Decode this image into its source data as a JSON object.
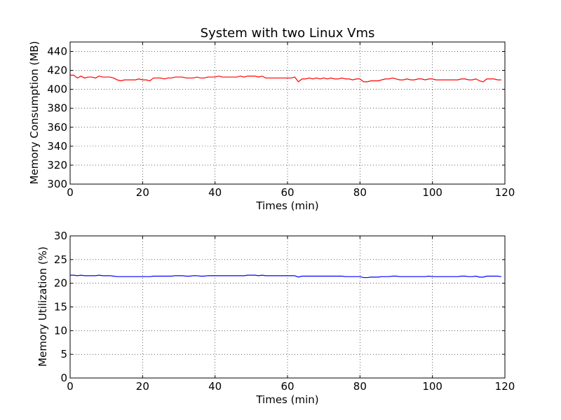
{
  "colors": {
    "series_top": "#ff0000",
    "series_bottom": "#0000ff",
    "axes": "#000000",
    "grid": "#000000"
  },
  "chart_data": [
    {
      "type": "line",
      "title": "System with two Linux Vms",
      "xlabel": "Times (min)",
      "ylabel": "Memory Consumption (MB)",
      "xlim": [
        0,
        120
      ],
      "ylim": [
        300,
        450
      ],
      "xticks": [
        0,
        20,
        40,
        60,
        80,
        100,
        120
      ],
      "yticks": [
        300,
        320,
        340,
        360,
        380,
        400,
        420,
        440
      ],
      "grid": true,
      "series": [
        {
          "color": "#ff0000",
          "x": [
            0,
            1,
            2,
            3,
            4,
            5,
            6,
            7,
            8,
            9,
            10,
            11,
            12,
            13,
            14,
            15,
            16,
            17,
            18,
            19,
            20,
            21,
            22,
            23,
            24,
            25,
            26,
            27,
            28,
            29,
            30,
            31,
            32,
            33,
            34,
            35,
            36,
            37,
            38,
            39,
            40,
            41,
            42,
            43,
            44,
            45,
            46,
            47,
            48,
            49,
            50,
            51,
            52,
            53,
            54,
            55,
            56,
            57,
            58,
            59,
            60,
            61,
            62,
            63,
            64,
            65,
            66,
            67,
            68,
            69,
            70,
            71,
            72,
            73,
            74,
            75,
            76,
            77,
            78,
            79,
            80,
            81,
            82,
            83,
            84,
            85,
            86,
            87,
            88,
            89,
            90,
            91,
            92,
            93,
            94,
            95,
            96,
            97,
            98,
            99,
            100,
            101,
            102,
            103,
            104,
            105,
            106,
            107,
            108,
            109,
            110,
            111,
            112,
            113,
            114,
            115,
            116,
            117,
            118,
            119
          ],
          "y": [
            415,
            415,
            412,
            414,
            412,
            413,
            413,
            412,
            414,
            413,
            413,
            413,
            412,
            410,
            409,
            410,
            410,
            410,
            410,
            411,
            410,
            410,
            409,
            412,
            412,
            412,
            411,
            412,
            412,
            413,
            413,
            413,
            412,
            412,
            412,
            413,
            412,
            412,
            413,
            413,
            413,
            414,
            413,
            413,
            413,
            413,
            413,
            414,
            413,
            414,
            414,
            414,
            413,
            414,
            412,
            412,
            412,
            412,
            412,
            412,
            412,
            412,
            413,
            408,
            411,
            411,
            412,
            411,
            412,
            411,
            412,
            411,
            412,
            411,
            411,
            412,
            411,
            411,
            410,
            411,
            411,
            408,
            408,
            409,
            409,
            409,
            410,
            411,
            411,
            412,
            411,
            410,
            410,
            411,
            410,
            410,
            411,
            411,
            410,
            411,
            411,
            410,
            410,
            410,
            410,
            410,
            410,
            410,
            411,
            411,
            410,
            410,
            411,
            409,
            408,
            411,
            411,
            411,
            410,
            410
          ]
        }
      ]
    },
    {
      "type": "line",
      "title": "",
      "xlabel": "Times (min)",
      "ylabel": "Memory Utilization (%)",
      "xlim": [
        0,
        120
      ],
      "ylim": [
        0,
        30
      ],
      "xticks": [
        0,
        20,
        40,
        60,
        80,
        100,
        120
      ],
      "yticks": [
        0,
        5,
        10,
        15,
        20,
        25,
        30
      ],
      "grid": true,
      "series": [
        {
          "color": "#0000ff",
          "x": [
            0,
            1,
            2,
            3,
            4,
            5,
            6,
            7,
            8,
            9,
            10,
            11,
            12,
            13,
            14,
            15,
            16,
            17,
            18,
            19,
            20,
            21,
            22,
            23,
            24,
            25,
            26,
            27,
            28,
            29,
            30,
            31,
            32,
            33,
            34,
            35,
            36,
            37,
            38,
            39,
            40,
            41,
            42,
            43,
            44,
            45,
            46,
            47,
            48,
            49,
            50,
            51,
            52,
            53,
            54,
            55,
            56,
            57,
            58,
            59,
            60,
            61,
            62,
            63,
            64,
            65,
            66,
            67,
            68,
            69,
            70,
            71,
            72,
            73,
            74,
            75,
            76,
            77,
            78,
            79,
            80,
            81,
            82,
            83,
            84,
            85,
            86,
            87,
            88,
            89,
            90,
            91,
            92,
            93,
            94,
            95,
            96,
            97,
            98,
            99,
            100,
            101,
            102,
            103,
            104,
            105,
            106,
            107,
            108,
            109,
            110,
            111,
            112,
            113,
            114,
            115,
            116,
            117,
            118,
            119
          ],
          "y": [
            21.7,
            21.7,
            21.6,
            21.7,
            21.6,
            21.6,
            21.6,
            21.6,
            21.7,
            21.6,
            21.6,
            21.6,
            21.5,
            21.4,
            21.4,
            21.4,
            21.4,
            21.4,
            21.4,
            21.4,
            21.4,
            21.4,
            21.4,
            21.5,
            21.5,
            21.5,
            21.5,
            21.5,
            21.5,
            21.6,
            21.6,
            21.6,
            21.5,
            21.5,
            21.6,
            21.6,
            21.5,
            21.5,
            21.6,
            21.6,
            21.6,
            21.6,
            21.6,
            21.6,
            21.6,
            21.6,
            21.6,
            21.6,
            21.6,
            21.7,
            21.7,
            21.7,
            21.6,
            21.7,
            21.6,
            21.6,
            21.6,
            21.6,
            21.6,
            21.6,
            21.6,
            21.6,
            21.6,
            21.3,
            21.5,
            21.5,
            21.5,
            21.5,
            21.5,
            21.5,
            21.5,
            21.5,
            21.5,
            21.5,
            21.5,
            21.5,
            21.4,
            21.4,
            21.4,
            21.4,
            21.4,
            21.2,
            21.2,
            21.3,
            21.3,
            21.3,
            21.4,
            21.4,
            21.4,
            21.5,
            21.5,
            21.4,
            21.4,
            21.4,
            21.4,
            21.4,
            21.4,
            21.4,
            21.4,
            21.5,
            21.4,
            21.4,
            21.4,
            21.4,
            21.4,
            21.4,
            21.4,
            21.4,
            21.5,
            21.5,
            21.4,
            21.4,
            21.5,
            21.3,
            21.3,
            21.5,
            21.5,
            21.5,
            21.5,
            21.4
          ]
        }
      ]
    }
  ]
}
